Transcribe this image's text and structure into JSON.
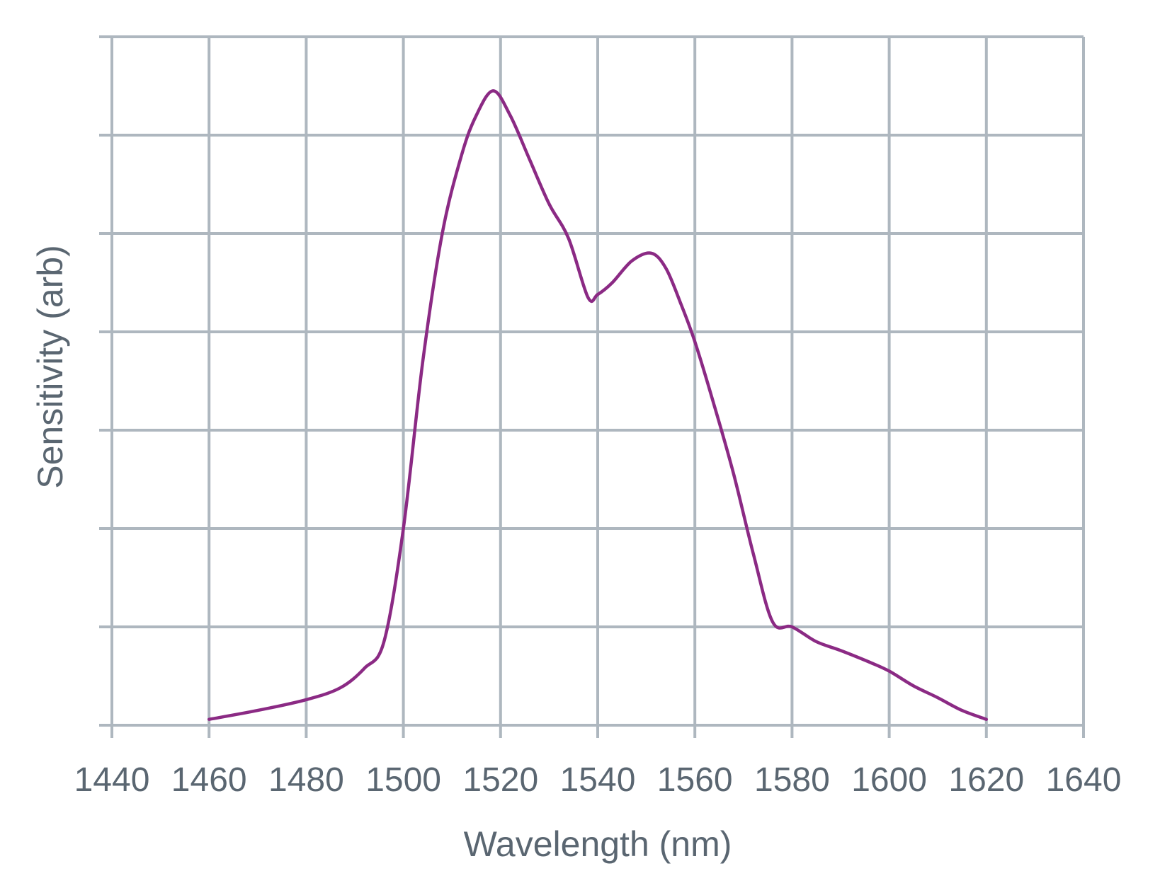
{
  "chart_data": {
    "type": "line",
    "xlabel": "Wavelength (nm)",
    "ylabel": "Sensitivity (arb)",
    "xlim": [
      1440,
      1640
    ],
    "x_ticks": [
      1440,
      1460,
      1480,
      1500,
      1520,
      1540,
      1560,
      1580,
      1600,
      1620,
      1640
    ],
    "ylim": [
      0,
      7
    ],
    "y_tick_labels_shown": false,
    "grid": true,
    "line_color": "#8b2a84",
    "grid_color": "#aeb7bf",
    "text_color": "#5a6671",
    "series": [
      {
        "x": [
          1460,
          1470,
          1480,
          1487,
          1492,
          1496,
          1500,
          1504,
          1508,
          1512,
          1515,
          1518.5,
          1522,
          1526,
          1530,
          1534,
          1538,
          1540,
          1543,
          1547,
          1551,
          1554,
          1557,
          1560,
          1564,
          1568,
          1572,
          1576,
          1580,
          1585,
          1590,
          1596,
          1600,
          1605,
          1610,
          1615,
          1620
        ],
        "y": [
          0.06,
          0.15,
          0.26,
          0.38,
          0.58,
          0.85,
          2.0,
          3.7,
          5.0,
          5.8,
          6.2,
          6.45,
          6.2,
          5.75,
          5.3,
          4.95,
          4.35,
          4.38,
          4.5,
          4.72,
          4.8,
          4.65,
          4.3,
          3.9,
          3.25,
          2.55,
          1.75,
          1.05,
          1.0,
          0.85,
          0.76,
          0.64,
          0.55,
          0.4,
          0.28,
          0.15,
          0.06
        ]
      }
    ]
  }
}
